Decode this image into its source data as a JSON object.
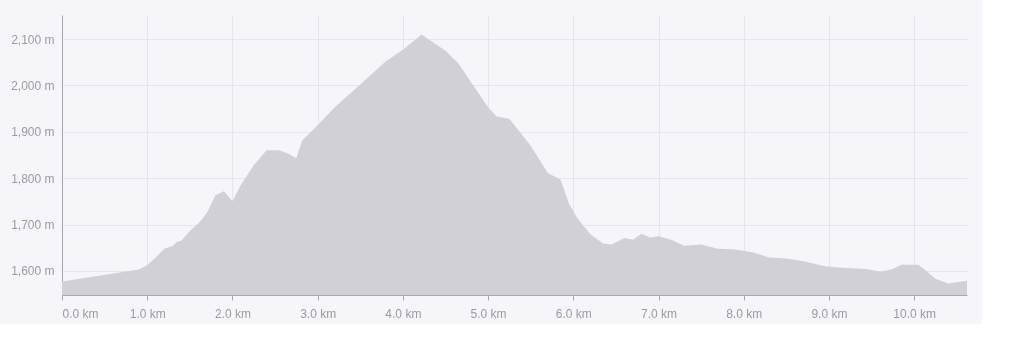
{
  "chart_data": {
    "type": "area",
    "x": [
      0,
      0.9,
      1.0,
      1.1,
      1.2,
      1.3,
      1.35,
      1.4,
      1.5,
      1.6,
      1.7,
      1.8,
      1.9,
      2.0,
      2.1,
      2.25,
      2.4,
      2.55,
      2.65,
      2.75,
      2.82,
      3.0,
      3.2,
      3.5,
      3.8,
      4.0,
      4.22,
      4.5,
      4.65,
      5.0,
      5.1,
      5.25,
      5.5,
      5.7,
      5.85,
      5.95,
      6.05,
      6.2,
      6.35,
      6.45,
      6.6,
      6.7,
      6.8,
      6.9,
      7.0,
      7.15,
      7.3,
      7.5,
      7.7,
      7.9,
      8.1,
      8.3,
      8.5,
      8.7,
      8.95,
      9.2,
      9.45,
      9.6,
      9.75,
      9.85,
      10.05,
      10.1,
      10.25,
      10.4,
      10.62
    ],
    "series": [
      {
        "color": "#d1d0d6",
        "values": [
          1577,
          1603,
          1612,
          1629,
          1648,
          1654,
          1663,
          1665,
          1686,
          1702,
          1725,
          1763,
          1772,
          1750,
          1786,
          1828,
          1860,
          1860,
          1853,
          1843,
          1882,
          1914,
          1953,
          2002,
          2052,
          2077,
          2110,
          2075,
          2048,
          1953,
          1933,
          1928,
          1870,
          1811,
          1797,
          1745,
          1713,
          1679,
          1659,
          1657,
          1671,
          1667,
          1680,
          1672,
          1675,
          1667,
          1654,
          1657,
          1648,
          1646,
          1640,
          1629,
          1627,
          1621,
          1610,
          1606,
          1604,
          1598,
          1604,
          1613,
          1613,
          1606,
          1583,
          1573,
          1579
        ]
      }
    ],
    "xlim": [
      0,
      10.62
    ],
    "ylim": [
      1548,
      2152
    ],
    "xticks": [
      {
        "value": 0,
        "label": "0.0 km"
      },
      {
        "value": 1,
        "label": "1.0 km"
      },
      {
        "value": 2,
        "label": "2.0 km"
      },
      {
        "value": 3,
        "label": "3.0 km"
      },
      {
        "value": 4,
        "label": "4.0 km"
      },
      {
        "value": 5,
        "label": "5.0 km"
      },
      {
        "value": 6,
        "label": "6.0 km"
      },
      {
        "value": 7,
        "label": "7.0 km"
      },
      {
        "value": 8,
        "label": "8.0 km"
      },
      {
        "value": 9,
        "label": "9.0 km"
      },
      {
        "value": 10,
        "label": "10.0 km"
      }
    ],
    "yticks": [
      {
        "value": 1600,
        "label": "1,600 m"
      },
      {
        "value": 1700,
        "label": "1,700 m"
      },
      {
        "value": 1800,
        "label": "1,800 m"
      },
      {
        "value": 1900,
        "label": "1,900 m"
      },
      {
        "value": 2000,
        "label": "2,000 m"
      },
      {
        "value": 2100,
        "label": "2,100 m"
      }
    ],
    "grid": true
  }
}
